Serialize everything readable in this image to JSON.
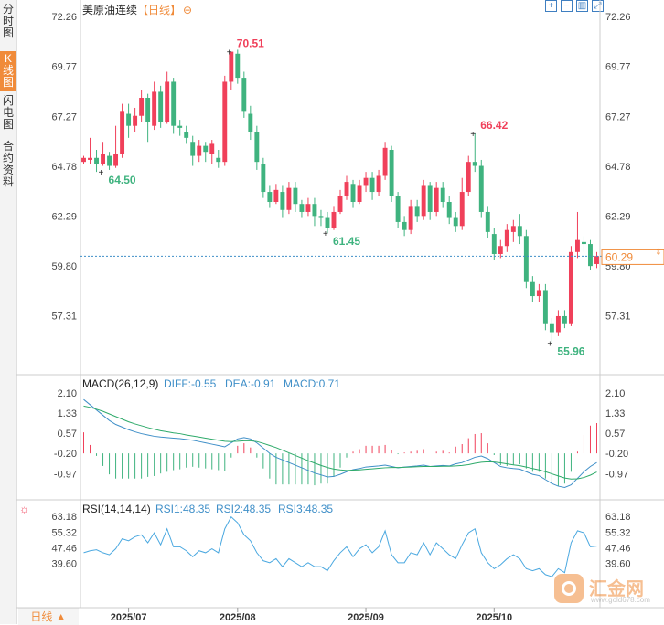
{
  "nav": {
    "tabs": [
      {
        "label": "分时图",
        "active": false
      },
      {
        "label": "K线图",
        "active": true
      },
      {
        "label": "闪电图",
        "active": false
      },
      {
        "label": "合约资料",
        "active": false
      }
    ]
  },
  "header": {
    "symbol": "美原油连续",
    "period_tag": "【日线】"
  },
  "toolbar": {
    "icons": [
      "zoom-in-icon",
      "zoom-out-icon",
      "chart-type-icon",
      "fullscreen-icon"
    ]
  },
  "period_button": "日线 ▲",
  "watermark": {
    "name": "汇金网",
    "url": "www.gold678.com"
  },
  "colors": {
    "up": "#f0405a",
    "down": "#3fb37f",
    "accent": "#f08b3a",
    "diff": "#3f8fc8",
    "dea": "#2eaa6a",
    "rsi": "#4aa8e0"
  },
  "chart_data": [
    {
      "type": "candlestick",
      "ylim": [
        55.2,
        72.26
      ],
      "y_ticks": [
        "72.26",
        "69.77",
        "67.27",
        "64.78",
        "62.29",
        "59.80",
        "57.31"
      ],
      "y_tick_values": [
        72.26,
        69.77,
        67.27,
        64.78,
        62.29,
        59.8,
        57.31
      ],
      "x_labels": [
        "2025/07",
        "2025/08",
        "2025/09",
        "2025/10"
      ],
      "x_label_index": [
        7,
        24,
        44,
        64
      ],
      "last_price": 60.29,
      "last_price_label": "60.29",
      "annotations": [
        {
          "label": "70.51",
          "index": 23,
          "value": 70.51,
          "color": "#f0405a"
        },
        {
          "label": "64.50",
          "index": 3,
          "value": 64.5,
          "color": "#3fb37f"
        },
        {
          "label": "66.42",
          "index": 61,
          "value": 66.42,
          "color": "#f0405a"
        },
        {
          "label": "61.45",
          "index": 38,
          "value": 61.45,
          "color": "#3fb37f"
        },
        {
          "label": "55.96",
          "index": 73,
          "value": 55.96,
          "color": "#3fb37f"
        }
      ],
      "candles": [
        [
          65.0,
          65.2,
          64.9,
          65.3
        ],
        [
          65.1,
          65.2,
          64.9,
          66.2
        ],
        [
          65.2,
          64.9,
          64.5,
          65.6
        ],
        [
          64.9,
          65.4,
          64.8,
          66.0
        ],
        [
          65.3,
          64.8,
          64.6,
          65.5
        ],
        [
          64.8,
          65.4,
          64.7,
          66.8
        ],
        [
          65.4,
          67.5,
          65.2,
          67.9
        ],
        [
          67.4,
          66.8,
          66.2,
          67.9
        ],
        [
          66.8,
          67.3,
          66.5,
          67.7
        ],
        [
          67.3,
          68.2,
          67.0,
          68.6
        ],
        [
          68.2,
          67.0,
          66.0,
          68.4
        ],
        [
          66.8,
          68.5,
          66.6,
          69.0
        ],
        [
          68.5,
          67.0,
          66.7,
          68.8
        ],
        [
          67.0,
          69.0,
          66.9,
          69.5
        ],
        [
          69.0,
          66.8,
          66.4,
          69.2
        ],
        [
          66.8,
          66.7,
          66.3,
          67.1
        ],
        [
          66.5,
          66.2,
          65.9,
          66.8
        ],
        [
          66.0,
          65.3,
          64.8,
          66.3
        ],
        [
          65.3,
          65.8,
          65.0,
          66.1
        ],
        [
          65.8,
          65.5,
          65.0,
          66.0
        ],
        [
          65.4,
          65.9,
          64.9,
          66.1
        ],
        [
          65.2,
          65.0,
          64.7,
          65.6
        ],
        [
          65.0,
          69.0,
          64.8,
          69.3
        ],
        [
          69.0,
          70.5,
          68.6,
          70.5
        ],
        [
          70.4,
          69.2,
          68.9,
          70.6
        ],
        [
          69.2,
          67.5,
          67.2,
          69.5
        ],
        [
          67.4,
          66.5,
          66.1,
          67.8
        ],
        [
          66.5,
          65.0,
          64.6,
          66.8
        ],
        [
          64.9,
          63.5,
          63.2,
          65.2
        ],
        [
          63.5,
          63.0,
          62.7,
          63.8
        ],
        [
          63.0,
          63.6,
          62.9,
          63.9
        ],
        [
          63.5,
          62.6,
          62.2,
          63.8
        ],
        [
          62.6,
          63.7,
          62.4,
          64.0
        ],
        [
          63.7,
          62.9,
          62.5,
          64.0
        ],
        [
          62.9,
          62.5,
          62.2,
          63.1
        ],
        [
          62.5,
          62.9,
          62.3,
          63.2
        ],
        [
          62.9,
          62.3,
          61.8,
          63.2
        ],
        [
          62.3,
          62.2,
          61.8,
          62.6
        ],
        [
          62.2,
          61.7,
          61.45,
          62.5
        ],
        [
          61.7,
          62.5,
          61.6,
          62.8
        ],
        [
          62.5,
          63.3,
          62.4,
          63.6
        ],
        [
          63.3,
          64.0,
          63.1,
          64.3
        ],
        [
          63.9,
          63.0,
          62.7,
          64.1
        ],
        [
          63.0,
          63.8,
          62.9,
          64.1
        ],
        [
          63.8,
          64.2,
          63.5,
          64.5
        ],
        [
          64.2,
          63.5,
          63.1,
          64.5
        ],
        [
          63.5,
          64.3,
          63.3,
          64.6
        ],
        [
          64.3,
          65.7,
          64.1,
          66.0
        ],
        [
          65.6,
          63.3,
          63.0,
          65.8
        ],
        [
          63.3,
          62.0,
          61.7,
          63.5
        ],
        [
          62.0,
          61.6,
          61.3,
          62.3
        ],
        [
          61.6,
          62.8,
          61.4,
          63.1
        ],
        [
          62.8,
          62.3,
          62.0,
          63.1
        ],
        [
          62.3,
          63.8,
          62.1,
          64.1
        ],
        [
          63.8,
          62.5,
          62.1,
          64.0
        ],
        [
          62.5,
          63.7,
          62.3,
          64.0
        ],
        [
          63.7,
          63.0,
          62.7,
          64.0
        ],
        [
          63.0,
          62.2,
          61.9,
          63.3
        ],
        [
          62.2,
          61.8,
          61.5,
          62.5
        ],
        [
          61.8,
          63.5,
          61.6,
          64.2
        ],
        [
          63.5,
          65.0,
          63.3,
          65.3
        ],
        [
          65.0,
          64.8,
          64.5,
          66.42
        ],
        [
          64.8,
          62.5,
          62.2,
          65.1
        ],
        [
          62.5,
          61.5,
          61.2,
          62.8
        ],
        [
          61.4,
          60.4,
          60.1,
          61.7
        ],
        [
          60.4,
          60.8,
          60.2,
          61.1
        ],
        [
          60.8,
          61.6,
          60.5,
          61.9
        ],
        [
          61.5,
          61.8,
          61.0,
          62.1
        ],
        [
          61.8,
          61.3,
          60.9,
          62.4
        ],
        [
          61.3,
          59.0,
          58.7,
          61.6
        ],
        [
          59.0,
          58.3,
          58.0,
          59.3
        ],
        [
          58.3,
          58.6,
          58.0,
          58.9
        ],
        [
          58.6,
          56.9,
          56.6,
          58.9
        ],
        [
          56.9,
          56.5,
          55.96,
          57.2
        ],
        [
          56.5,
          57.3,
          56.3,
          57.6
        ],
        [
          57.3,
          56.9,
          56.7,
          57.6
        ],
        [
          56.9,
          60.5,
          56.8,
          60.8
        ],
        [
          60.5,
          61.1,
          60.2,
          62.5
        ],
        [
          61.0,
          60.9,
          60.5,
          61.3
        ],
        [
          60.9,
          59.8,
          59.6,
          61.1
        ],
        [
          59.9,
          60.3,
          59.7,
          60.5
        ]
      ]
    },
    {
      "type": "macd",
      "title": "MACD(26,12,9)",
      "diff_label": "DIFF:-0.55",
      "dea_label": "DEA:-0.91",
      "macd_label": "MACD:0.71",
      "ylim": [
        -1.9,
        2.1
      ],
      "y_ticks": [
        "2.10",
        "1.33",
        "0.57",
        "-0.20",
        "-0.97"
      ],
      "y_tick_values": [
        2.1,
        1.33,
        0.57,
        -0.2,
        -0.97
      ],
      "diff": [
        1.85,
        1.65,
        1.45,
        1.25,
        1.05,
        0.9,
        0.8,
        0.7,
        0.62,
        0.55,
        0.5,
        0.45,
        0.42,
        0.4,
        0.38,
        0.36,
        0.33,
        0.3,
        0.25,
        0.2,
        0.15,
        0.1,
        0.05,
        0.2,
        0.35,
        0.4,
        0.35,
        0.2,
        0.0,
        -0.2,
        -0.35,
        -0.45,
        -0.55,
        -0.65,
        -0.75,
        -0.85,
        -0.95,
        -1.02,
        -1.1,
        -1.08,
        -1.0,
        -0.9,
        -0.82,
        -0.78,
        -0.72,
        -0.7,
        -0.68,
        -0.65,
        -0.7,
        -0.75,
        -0.72,
        -0.7,
        -0.68,
        -0.65,
        -0.7,
        -0.68,
        -0.66,
        -0.68,
        -0.6,
        -0.55,
        -0.45,
        -0.35,
        -0.3,
        -0.4,
        -0.55,
        -0.7,
        -0.75,
        -0.78,
        -0.8,
        -0.9,
        -1.0,
        -1.05,
        -1.2,
        -1.35,
        -1.45,
        -1.5,
        -1.4,
        -1.15,
        -0.9,
        -0.7,
        -0.55
      ],
      "dea": [
        1.6,
        1.55,
        1.48,
        1.4,
        1.3,
        1.2,
        1.1,
        1.0,
        0.92,
        0.85,
        0.78,
        0.72,
        0.66,
        0.62,
        0.58,
        0.55,
        0.5,
        0.46,
        0.42,
        0.38,
        0.34,
        0.3,
        0.26,
        0.25,
        0.26,
        0.28,
        0.28,
        0.25,
        0.18,
        0.1,
        0.02,
        -0.08,
        -0.18,
        -0.28,
        -0.38,
        -0.48,
        -0.57,
        -0.66,
        -0.74,
        -0.8,
        -0.83,
        -0.85,
        -0.84,
        -0.83,
        -0.81,
        -0.79,
        -0.77,
        -0.75,
        -0.74,
        -0.74,
        -0.73,
        -0.72,
        -0.71,
        -0.7,
        -0.7,
        -0.7,
        -0.69,
        -0.69,
        -0.68,
        -0.66,
        -0.63,
        -0.58,
        -0.54,
        -0.52,
        -0.53,
        -0.56,
        -0.6,
        -0.64,
        -0.67,
        -0.72,
        -0.78,
        -0.83,
        -0.9,
        -0.98,
        -1.06,
        -1.14,
        -1.18,
        -1.17,
        -1.12,
        -1.03,
        -0.91
      ]
    },
    {
      "type": "rsi",
      "title": "RSI(14,14,14)",
      "rsi1_label": "RSI1:48.35",
      "rsi2_label": "RSI2:48.35",
      "rsi3_label": "RSI3:48.35",
      "ylim": [
        33.5,
        66.5
      ],
      "y_ticks": [
        "63.18",
        "55.32",
        "47.46",
        "39.60"
      ],
      "y_tick_values": [
        63.18,
        55.32,
        47.46,
        39.6
      ],
      "values": [
        45,
        46,
        46.5,
        45,
        44,
        47,
        52,
        51,
        53,
        54,
        50,
        55,
        49,
        57,
        48,
        48,
        46,
        43,
        46,
        45,
        47,
        45,
        57,
        63,
        60,
        54,
        51,
        45,
        41,
        40,
        42,
        38,
        42,
        40,
        38,
        40,
        38,
        38,
        36,
        41,
        45,
        48,
        43,
        47,
        49,
        45,
        48,
        56,
        44,
        40,
        40,
        45,
        44,
        50,
        44,
        50,
        47,
        44,
        42,
        49,
        55,
        57,
        45,
        40,
        37,
        39,
        42,
        44,
        42,
        37,
        36,
        37,
        34,
        33,
        37,
        35,
        50,
        56,
        55,
        48,
        48.35
      ]
    }
  ]
}
